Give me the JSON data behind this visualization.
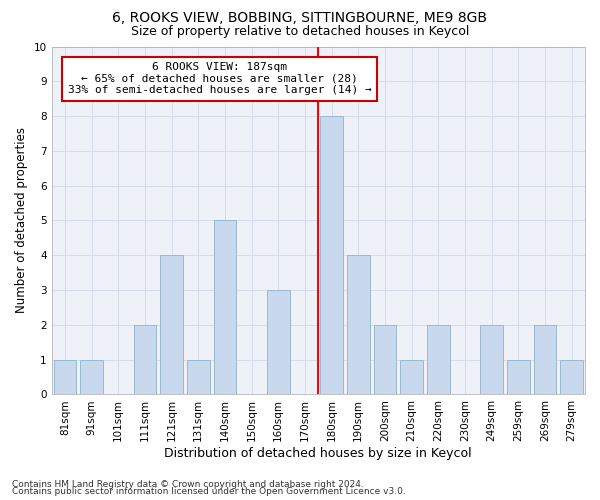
{
  "title1": "6, ROOKS VIEW, BOBBING, SITTINGBOURNE, ME9 8GB",
  "title2": "Size of property relative to detached houses in Keycol",
  "xlabel": "Distribution of detached houses by size in Keycol",
  "ylabel": "Number of detached properties",
  "categories": [
    "81sqm",
    "91sqm",
    "101sqm",
    "111sqm",
    "121sqm",
    "131sqm",
    "140sqm",
    "150sqm",
    "160sqm",
    "170sqm",
    "180sqm",
    "190sqm",
    "200sqm",
    "210sqm",
    "220sqm",
    "230sqm",
    "249sqm",
    "259sqm",
    "269sqm",
    "279sqm"
  ],
  "values": [
    1,
    1,
    0,
    2,
    4,
    1,
    5,
    0,
    3,
    0,
    8,
    4,
    2,
    1,
    2,
    0,
    2,
    1,
    2,
    1
  ],
  "bar_color": "#c9d9ed",
  "bar_edge_color": "#9ab8d4",
  "annotation_line1": "6 ROOKS VIEW: 187sqm",
  "annotation_line2": "← 65% of detached houses are smaller (28)",
  "annotation_line3": "33% of semi-detached houses are larger (14) →",
  "annotation_box_color": "#cc0000",
  "red_line_idx": 10,
  "ylim": [
    0,
    10
  ],
  "yticks": [
    0,
    1,
    2,
    3,
    4,
    5,
    6,
    7,
    8,
    9,
    10
  ],
  "background_color": "#eef2f8",
  "grid_color": "#d0d8e8",
  "footer1": "Contains HM Land Registry data © Crown copyright and database right 2024.",
  "footer2": "Contains public sector information licensed under the Open Government Licence v3.0.",
  "title1_fontsize": 10,
  "title2_fontsize": 9,
  "xlabel_fontsize": 9,
  "ylabel_fontsize": 8.5,
  "tick_fontsize": 7.5,
  "annotation_fontsize": 8,
  "footer_fontsize": 6.5
}
